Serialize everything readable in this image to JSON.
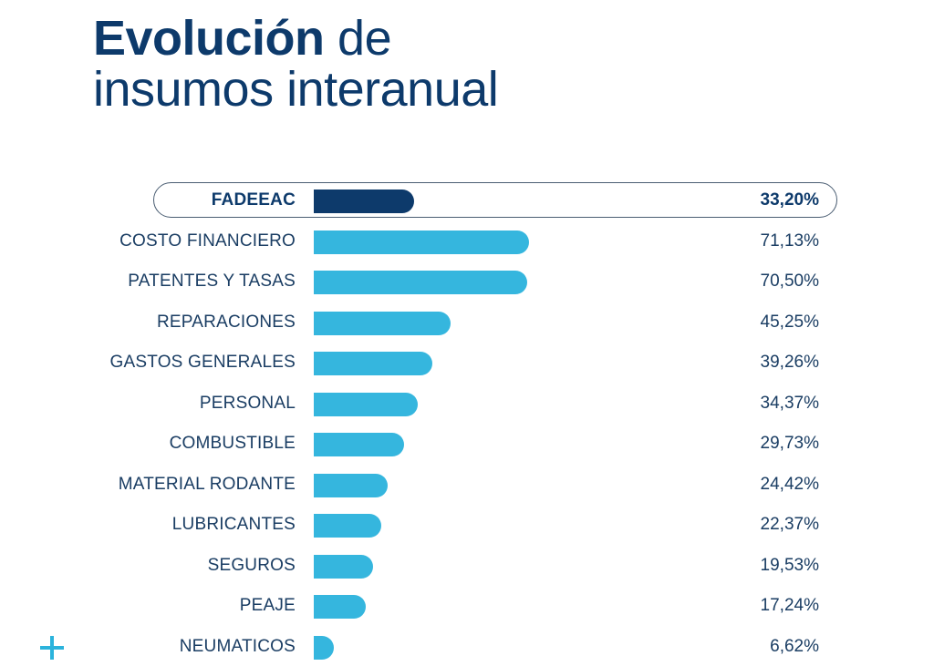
{
  "header": {
    "title_bold": "Evolución",
    "title_rest_line1": " de",
    "title_line2": "insumos interanual"
  },
  "colors": {
    "highlight_bar": "#0d3a6b",
    "bar": "#35b6de",
    "text": "#1a3d63",
    "accent_plus": "#2bb3dc"
  },
  "decor": {
    "plus_icon": "plus-icon"
  },
  "chart_data": {
    "type": "bar",
    "orientation": "horizontal",
    "title": "Evolución de insumos interanual",
    "xlabel": "",
    "ylabel": "",
    "unit": "%",
    "grid": false,
    "legend": "none",
    "xlim": [
      0,
      100
    ],
    "categories": [
      "FADEEAC",
      "COSTO FINANCIERO",
      "PATENTES Y TASAS",
      "REPARACIONES",
      "GASTOS GENERALES",
      "PERSONAL",
      "COMBUSTIBLE",
      "MATERIAL RODANTE",
      "LUBRICANTES",
      "SEGUROS",
      "PEAJE",
      "NEUMATICOS"
    ],
    "values": [
      33.2,
      71.13,
      70.5,
      45.25,
      39.26,
      34.37,
      29.73,
      24.42,
      22.37,
      19.53,
      17.24,
      6.62
    ],
    "value_labels": [
      "33,20%",
      "71,13%",
      "70,50%",
      "45,25%",
      "39,26%",
      "34,37%",
      "29,73%",
      "24,42%",
      "22,37%",
      "19,53%",
      "17,24%",
      "6,62%"
    ],
    "highlighted": "FADEEAC"
  }
}
